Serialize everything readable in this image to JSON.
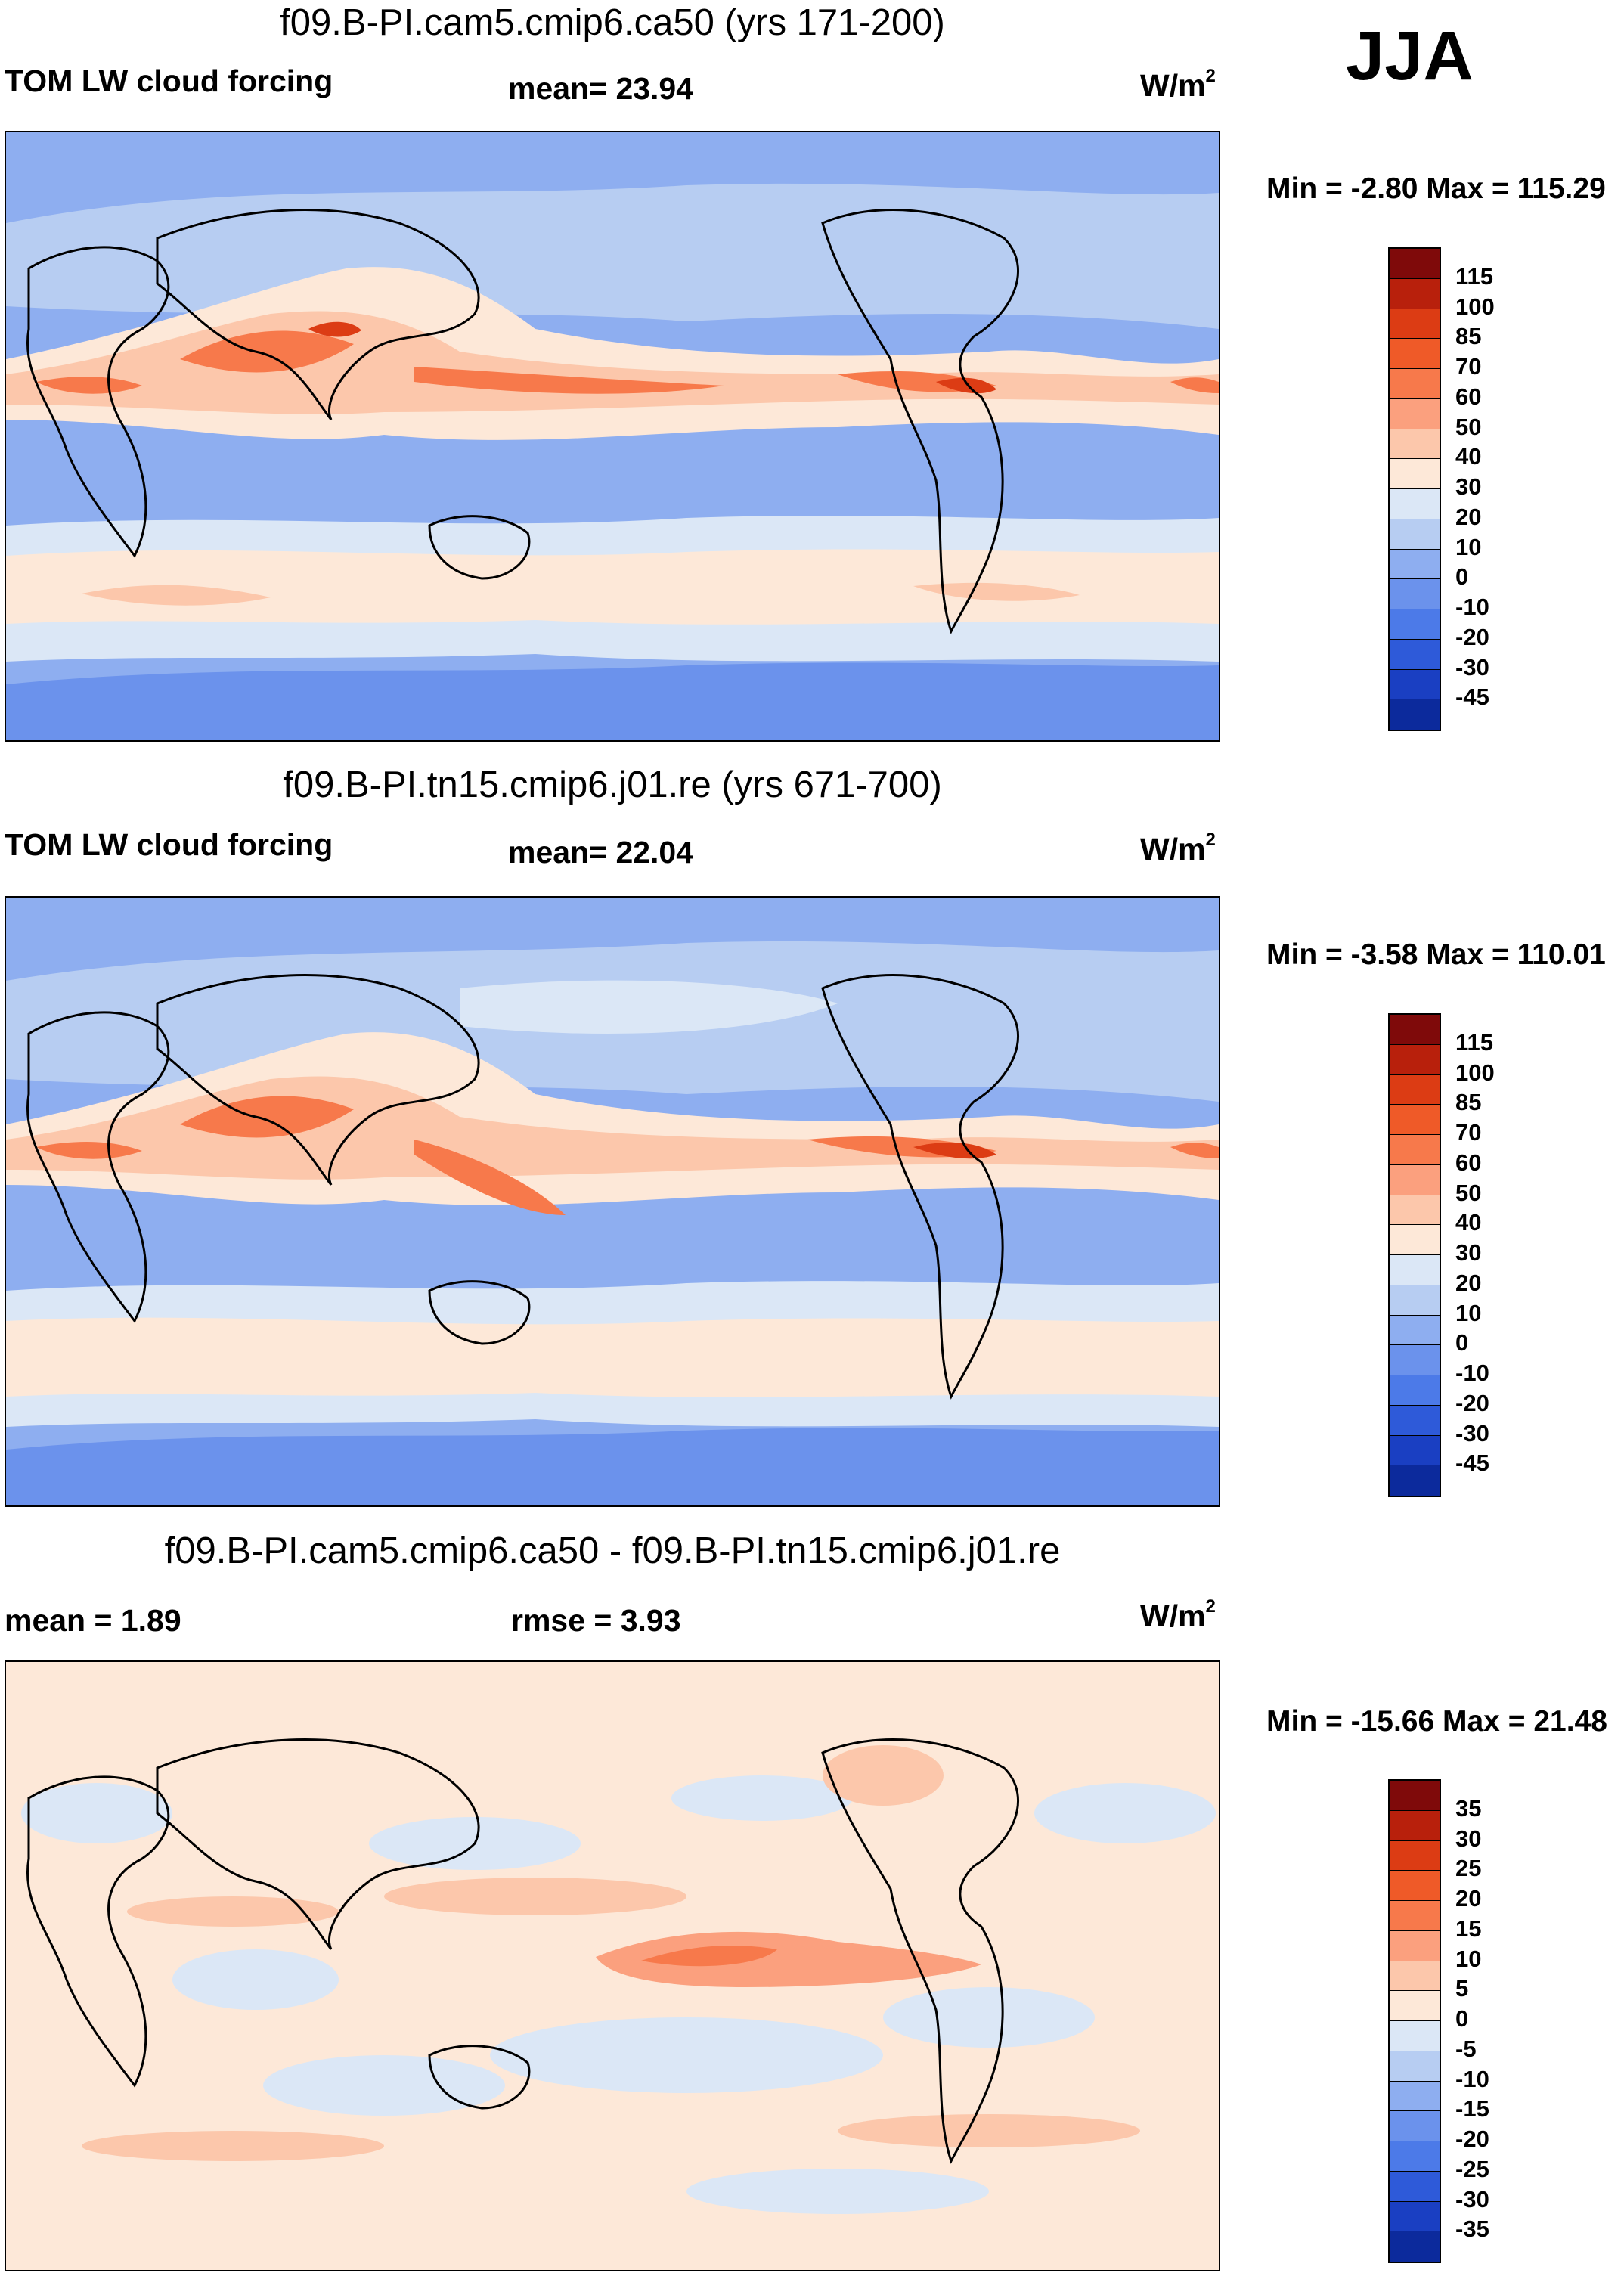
{
  "season": "JJA",
  "panels": [
    {
      "title": "f09.B-PI.cam5.cmip6.ca50 (yrs 171-200)",
      "left_label": "TOM LW cloud forcing",
      "mid_label": "mean=  23.94",
      "units_main": "W/m",
      "units_sup": "2",
      "minmax": "Min =  -2.80 Max = 115.29",
      "colorbar": {
        "ticks": [
          "115",
          "100",
          "85",
          "70",
          "60",
          "50",
          "40",
          "30",
          "20",
          "10",
          "0",
          "-10",
          "-20",
          "-30",
          "-45"
        ],
        "colors": [
          "#7f0a0a",
          "#b8200c",
          "#dc3c14",
          "#ef5a28",
          "#f7794b",
          "#fba07e",
          "#fcc7ab",
          "#fde8d8",
          "#dbe7f6",
          "#b7cdf2",
          "#8eaef0",
          "#6b92ec",
          "#4c7ae8",
          "#2e5ad9",
          "#1a3fc2",
          "#0c2a9c"
        ]
      },
      "map_layers": [
        "ocean-base",
        "itcz-band",
        "itcz-core",
        "southern-band",
        "subtropic-blue",
        "antarctic"
      ]
    },
    {
      "title": "f09.B-PI.tn15.cmip6.j01.re (yrs 671-700)",
      "left_label": "TOM LW cloud forcing",
      "mid_label": "mean=  22.04",
      "units_main": "W/m",
      "units_sup": "2",
      "minmax": "Min =  -3.58 Max = 110.01",
      "colorbar": {
        "ticks": [
          "115",
          "100",
          "85",
          "70",
          "60",
          "50",
          "40",
          "30",
          "20",
          "10",
          "0",
          "-10",
          "-20",
          "-30",
          "-45"
        ],
        "colors": [
          "#7f0a0a",
          "#b8200c",
          "#dc3c14",
          "#ef5a28",
          "#f7794b",
          "#fba07e",
          "#fcc7ab",
          "#fde8d8",
          "#dbe7f6",
          "#b7cdf2",
          "#8eaef0",
          "#6b92ec",
          "#4c7ae8",
          "#2e5ad9",
          "#1a3fc2",
          "#0c2a9c"
        ]
      },
      "map_layers": [
        "ocean-base",
        "itcz-band",
        "itcz-core",
        "southern-band",
        "subtropic-blue",
        "antarctic"
      ]
    },
    {
      "title": "f09.B-PI.cam5.cmip6.ca50 - f09.B-PI.tn15.cmip6.j01.re",
      "left_label": "mean =   1.89",
      "mid_label": "rmse =   3.93",
      "units_main": "W/m",
      "units_sup": "2",
      "minmax": "Min = -15.66 Max =  21.48",
      "colorbar": {
        "ticks": [
          "35",
          "30",
          "25",
          "20",
          "15",
          "10",
          "5",
          "0",
          "-5",
          "-10",
          "-15",
          "-20",
          "-25",
          "-30",
          "-35"
        ],
        "colors": [
          "#7f0a0a",
          "#b8200c",
          "#dc3c14",
          "#ef5a28",
          "#f7794b",
          "#fba07e",
          "#fcc7ab",
          "#fde8d8",
          "#dbe7f6",
          "#b7cdf2",
          "#8eaef0",
          "#6b92ec",
          "#4c7ae8",
          "#2e5ad9",
          "#1a3fc2",
          "#0c2a9c"
        ]
      },
      "map_layers": [
        "diff-base",
        "diff-blue-patches",
        "diff-red-pacific"
      ]
    }
  ]
}
